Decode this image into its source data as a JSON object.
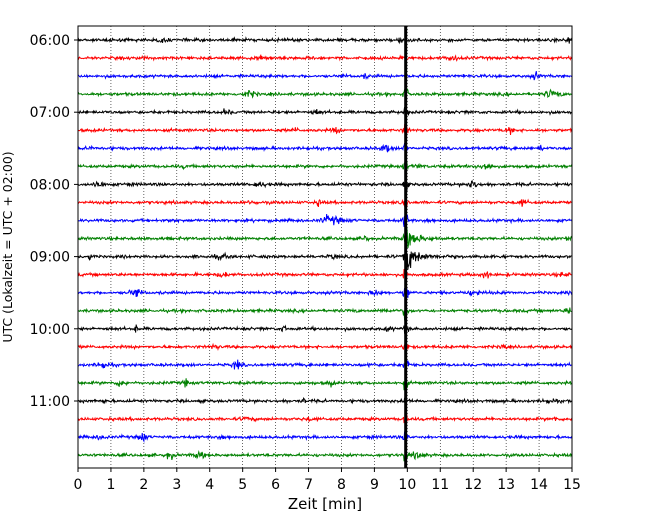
{
  "chart_data": {
    "type": "line",
    "title": "",
    "xlabel": "Zeit  [min]",
    "ylabel": "UTC (Lokalzeit = UTC + 02:00)",
    "xlim": [
      0,
      15
    ],
    "x_ticks": [
      0,
      1,
      2,
      3,
      4,
      5,
      6,
      7,
      8,
      9,
      10,
      11,
      12,
      13,
      14,
      15
    ],
    "y_tick_labels": [
      "06:00",
      "07:00",
      "08:00",
      "09:00",
      "10:00",
      "11:00"
    ],
    "grid": "vertical dotted lines at each minute",
    "colors": [
      "#000000",
      "#ff0000",
      "#0000ff",
      "#008000"
    ],
    "rows_start": "06:00",
    "row_interval_minutes": 15,
    "row_count": 24,
    "event": {
      "description": "earthquake signal",
      "onset_row_start": "06:45",
      "onset_minute": 9.95,
      "max_amplitude_row_start": "09:00",
      "max_amplitude_minute": 10.1
    }
  }
}
